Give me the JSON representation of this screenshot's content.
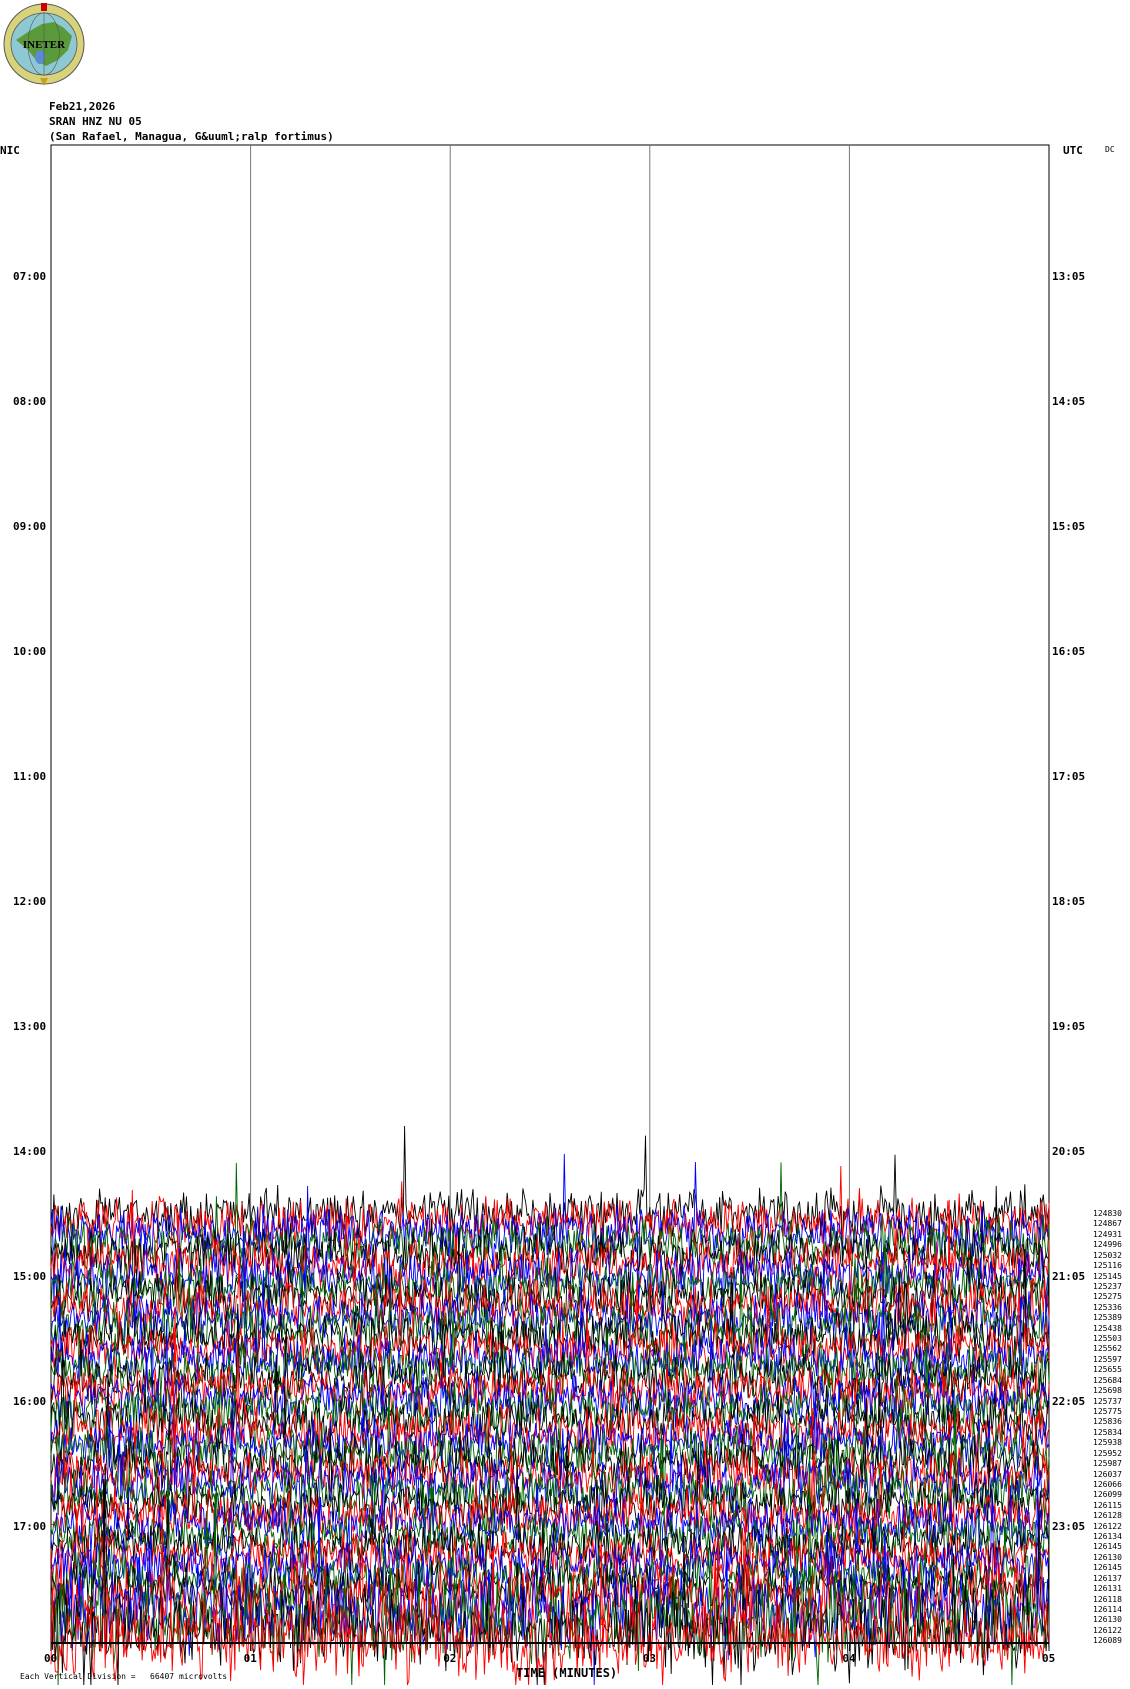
{
  "logo": {
    "text": "INETER"
  },
  "header": {
    "date": "Feb21,2026",
    "station": "SRAN HNZ NU 05",
    "location": "(San Rafael, Managua, G&uuml;ralp fortimus)"
  },
  "chart_data": {
    "type": "line",
    "title": "SRAN HNZ NU 05",
    "left_axis_label": "NIC",
    "right_axis_label": "UTC",
    "corner_label": "DC",
    "left_ticks": [
      "07:00",
      "08:00",
      "09:00",
      "10:00",
      "11:00",
      "12:00",
      "13:00",
      "14:00",
      "15:00",
      "16:00",
      "17:00"
    ],
    "right_ticks": [
      "13:05",
      "14:05",
      "15:05",
      "16:05",
      "17:05",
      "18:05",
      "19:05",
      "20:05",
      "21:05",
      "22:05",
      "23:05"
    ],
    "x_ticks": [
      "00",
      "01",
      "02",
      "03",
      "04",
      "05"
    ],
    "xlabel": "TIME (MINUTES)",
    "xlim": [
      0,
      5
    ],
    "grid": true,
    "trace_colors": [
      "#000000",
      "#ff0000",
      "#0000ff",
      "#006400"
    ],
    "row_values": [
      124830,
      124867,
      124931,
      124996,
      125032,
      125116,
      125145,
      125237,
      125275,
      125336,
      125389,
      125438,
      125503,
      125562,
      125597,
      125655,
      125684,
      125698,
      125737,
      125775,
      125836,
      125834,
      125938,
      125952,
      125987,
      126037,
      126066,
      126099,
      126115,
      126128,
      126122,
      126134,
      126145,
      126130,
      126145,
      126137,
      126131,
      126118,
      126114,
      126130,
      126122,
      126089
    ],
    "scale_note": "Each Vertical Division =   66407 microvolts"
  }
}
